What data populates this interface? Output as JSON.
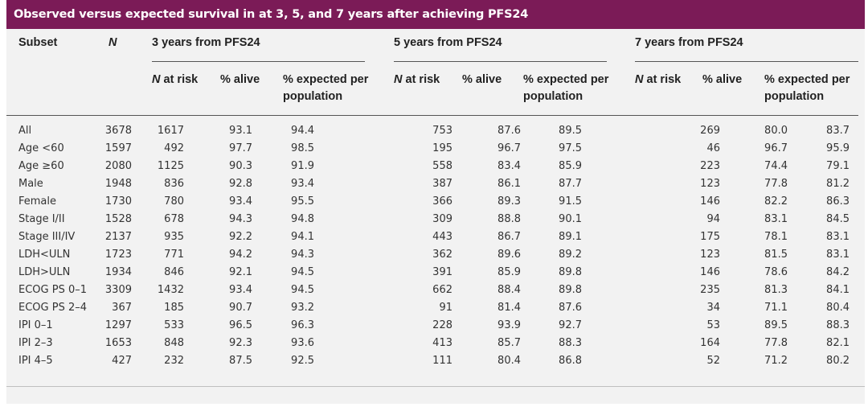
{
  "title": "Observed versus expected survival in at 3, 5, and 7 years after achieving PFS24",
  "headers": {
    "subset": "Subset",
    "n": "N",
    "groups": [
      "3 years from PFS24",
      "5 years from PFS24",
      "7 years from PFS24"
    ],
    "sub": {
      "n_prefix": "N",
      "at_risk": " at risk",
      "alive": "% alive",
      "expected_line1": "% expected per",
      "expected_line2": "population"
    }
  },
  "rows": [
    {
      "subset": "All",
      "n": "3678",
      "y3": [
        "1617",
        "93.1",
        "94.4"
      ],
      "y5": [
        "753",
        "87.6",
        "89.5"
      ],
      "y7": [
        "269",
        "80.0",
        "83.7"
      ]
    },
    {
      "subset": "Age <60",
      "n": "1597",
      "y3": [
        "492",
        "97.7",
        "98.5"
      ],
      "y5": [
        "195",
        "96.7",
        "97.5"
      ],
      "y7": [
        "46",
        "96.7",
        "95.9"
      ]
    },
    {
      "subset": "Age ≥60",
      "n": "2080",
      "y3": [
        "1125",
        "90.3",
        "91.9"
      ],
      "y5": [
        "558",
        "83.4",
        "85.9"
      ],
      "y7": [
        "223",
        "74.4",
        "79.1"
      ]
    },
    {
      "subset": "Male",
      "n": "1948",
      "y3": [
        "836",
        "92.8",
        "93.4"
      ],
      "y5": [
        "387",
        "86.1",
        "87.7"
      ],
      "y7": [
        "123",
        "77.8",
        "81.2"
      ]
    },
    {
      "subset": "Female",
      "n": "1730",
      "y3": [
        "780",
        "93.4",
        "95.5"
      ],
      "y5": [
        "366",
        "89.3",
        "91.5"
      ],
      "y7": [
        "146",
        "82.2",
        "86.3"
      ]
    },
    {
      "subset": "Stage I/II",
      "n": "1528",
      "y3": [
        "678",
        "94.3",
        "94.8"
      ],
      "y5": [
        "309",
        "88.8",
        "90.1"
      ],
      "y7": [
        "94",
        "83.1",
        "84.5"
      ]
    },
    {
      "subset": "Stage III/IV",
      "n": "2137",
      "y3": [
        "935",
        "92.2",
        "94.1"
      ],
      "y5": [
        "443",
        "86.7",
        "89.1"
      ],
      "y7": [
        "175",
        "78.1",
        "83.1"
      ]
    },
    {
      "subset": "LDH<ULN",
      "n": "1723",
      "y3": [
        "771",
        "94.2",
        "94.3"
      ],
      "y5": [
        "362",
        "89.6",
        "89.2"
      ],
      "y7": [
        "123",
        "81.5",
        "83.1"
      ]
    },
    {
      "subset": "LDH>ULN",
      "n": "1934",
      "y3": [
        "846",
        "92.1",
        "94.5"
      ],
      "y5": [
        "391",
        "85.9",
        "89.8"
      ],
      "y7": [
        "146",
        "78.6",
        "84.2"
      ]
    },
    {
      "subset": "ECOG PS 0–1",
      "n": "3309",
      "y3": [
        "1432",
        "93.4",
        "94.5"
      ],
      "y5": [
        "662",
        "88.4",
        "89.8"
      ],
      "y7": [
        "235",
        "81.3",
        "84.1"
      ]
    },
    {
      "subset": "ECOG PS 2–4",
      "n": "367",
      "y3": [
        "185",
        "90.7",
        "93.2"
      ],
      "y5": [
        "91",
        "81.4",
        "87.6"
      ],
      "y7": [
        "34",
        "71.1",
        "80.4"
      ]
    },
    {
      "subset": "IPI 0–1",
      "n": "1297",
      "y3": [
        "533",
        "96.5",
        "96.3"
      ],
      "y5": [
        "228",
        "93.9",
        "92.7"
      ],
      "y7": [
        "53",
        "89.5",
        "88.3"
      ]
    },
    {
      "subset": "IPI 2–3",
      "n": "1653",
      "y3": [
        "848",
        "92.3",
        "93.6"
      ],
      "y5": [
        "413",
        "85.7",
        "88.3"
      ],
      "y7": [
        "164",
        "77.8",
        "82.1"
      ]
    },
    {
      "subset": "IPI 4–5",
      "n": "427",
      "y3": [
        "232",
        "87.5",
        "92.5"
      ],
      "y5": [
        "111",
        "80.4",
        "86.8"
      ],
      "y7": [
        "52",
        "71.2",
        "80.2"
      ]
    }
  ],
  "colors": {
    "title_bg": "#7b1b57",
    "panel_bg": "#f2f2f2",
    "text": "#333333"
  }
}
